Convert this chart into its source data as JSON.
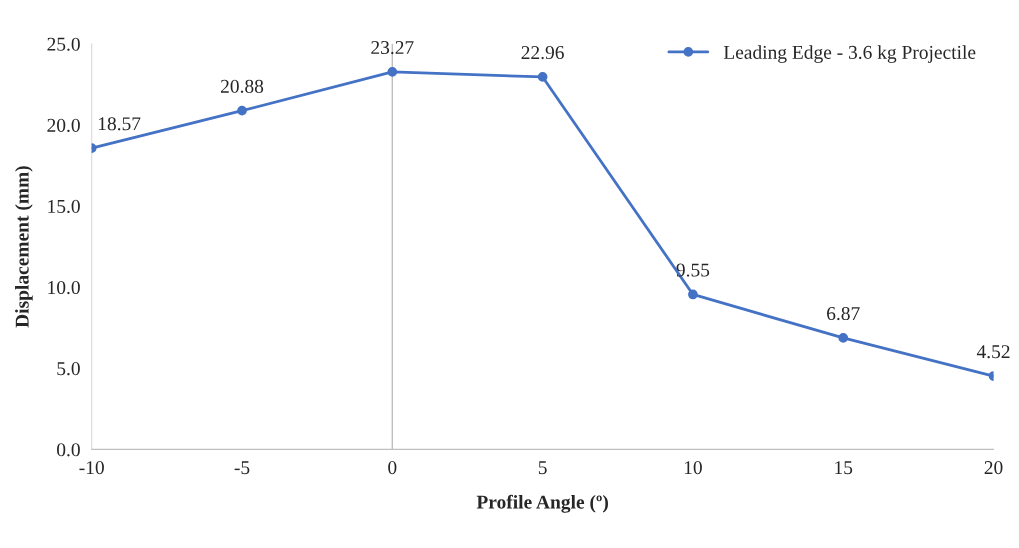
{
  "chart_data": {
    "type": "line",
    "xlabel": "Profile Angle (º)",
    "ylabel": "Displacement (mm)",
    "x": [
      -10,
      -5,
      0,
      5,
      10,
      15,
      20
    ],
    "series": [
      {
        "name": "Leading Edge - 3.6 kg Projectile",
        "color": "#4472c4",
        "values": [
          18.57,
          20.88,
          23.27,
          22.96,
          9.55,
          6.87,
          4.52
        ]
      }
    ],
    "data_labels": true,
    "marker": "circle",
    "line_style": "solid",
    "legend": "top right",
    "grid": false,
    "xlim": [
      -10,
      20
    ],
    "xticks": [
      -10,
      -5,
      0,
      5,
      10,
      15,
      20
    ],
    "ylim": [
      0,
      25
    ],
    "yticks": [
      {
        "value": 0,
        "label": "0.0"
      },
      {
        "value": 5,
        "label": "5.0"
      },
      {
        "value": 10,
        "label": "10.0"
      },
      {
        "value": 15,
        "label": "15.0"
      },
      {
        "value": 20,
        "label": "20.0"
      },
      {
        "value": 25,
        "label": "25.0"
      }
    ],
    "ref_lines": [
      {
        "axis": "x",
        "value": 0,
        "color": "#bfbfbf",
        "line_style": "solid"
      }
    ]
  }
}
